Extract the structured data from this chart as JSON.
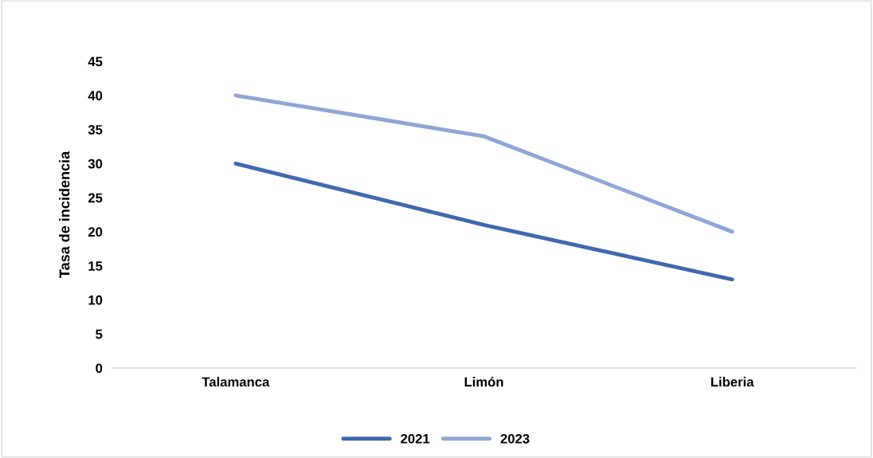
{
  "chart_data": {
    "type": "line",
    "ylabel": "Tasa de incidencia",
    "categories": [
      "Talamanca",
      "Limón",
      "Liberia"
    ],
    "series": [
      {
        "name": "2021",
        "color": "#4068b0",
        "values": [
          30,
          21,
          13
        ]
      },
      {
        "name": "2023",
        "color": "#8fa5d5",
        "values": [
          40,
          34,
          20
        ]
      }
    ],
    "ylim": [
      0,
      45
    ],
    "yticks": [
      0,
      5,
      10,
      15,
      20,
      25,
      30,
      35,
      40,
      45
    ],
    "grid": false,
    "legend": "bottom",
    "marker": "none",
    "line_style": "solid"
  }
}
